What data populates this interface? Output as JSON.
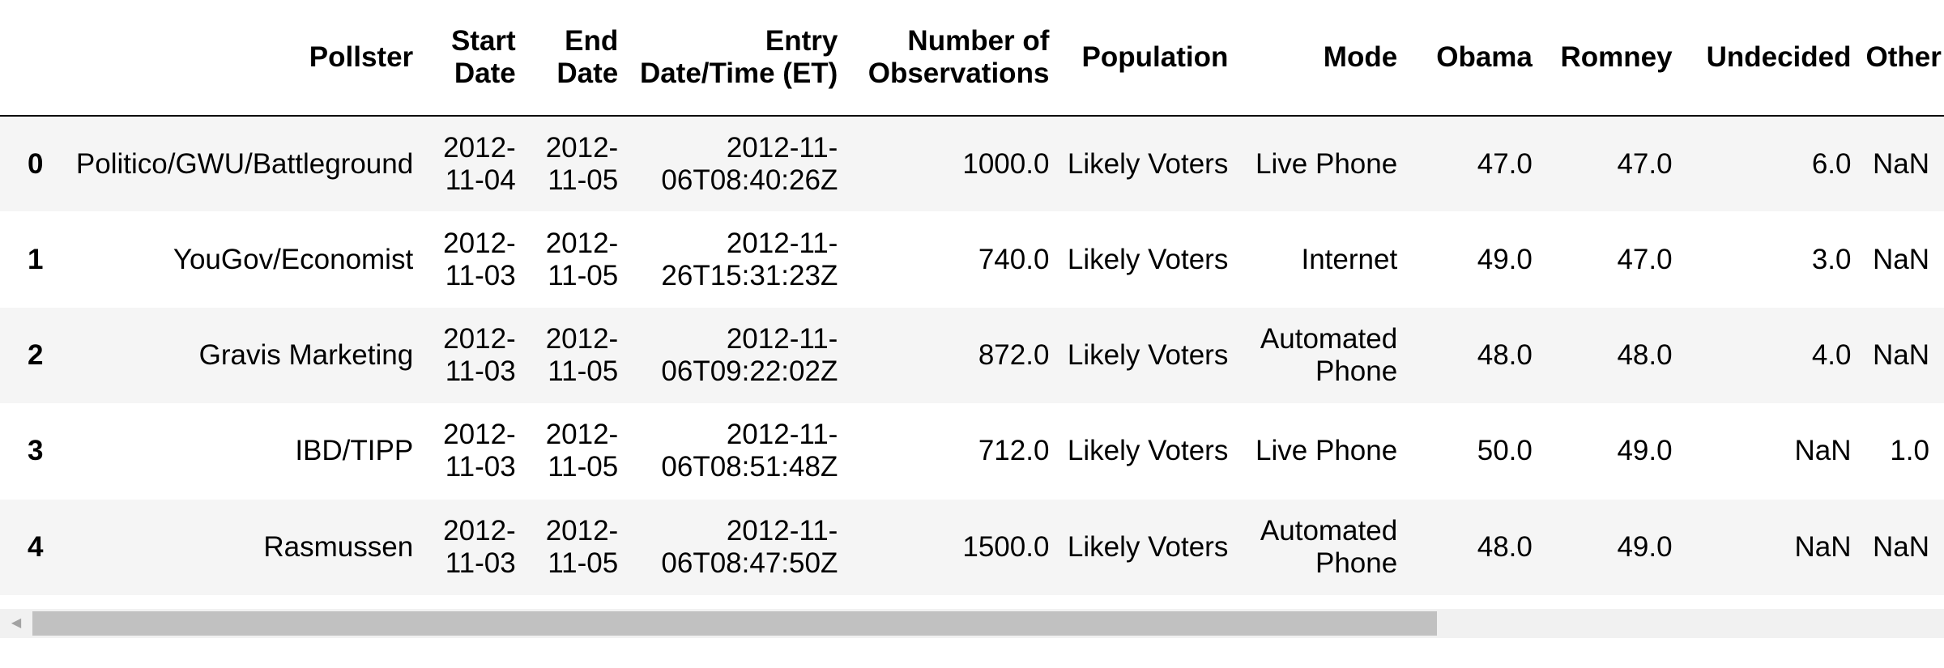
{
  "table": {
    "index_header": "",
    "columns": [
      "Pollster",
      "Start Date",
      "End Date",
      "Entry Date/Time (ET)",
      "Number of Observations",
      "Population",
      "Mode",
      "Obama",
      "Romney",
      "Undecided",
      "Other"
    ],
    "rows": [
      {
        "index": "0",
        "cells": [
          "Politico/GWU/Battleground",
          "2012-11-04",
          "2012-11-05",
          "2012-11-06T08:40:26Z",
          "1000.0",
          "Likely Voters",
          "Live Phone",
          "47.0",
          "47.0",
          "6.0",
          "NaN"
        ]
      },
      {
        "index": "1",
        "cells": [
          "YouGov/Economist",
          "2012-11-03",
          "2012-11-05",
          "2012-11-26T15:31:23Z",
          "740.0",
          "Likely Voters",
          "Internet",
          "49.0",
          "47.0",
          "3.0",
          "NaN"
        ]
      },
      {
        "index": "2",
        "cells": [
          "Gravis Marketing",
          "2012-11-03",
          "2012-11-05",
          "2012-11-06T09:22:02Z",
          "872.0",
          "Likely Voters",
          "Automated Phone",
          "48.0",
          "48.0",
          "4.0",
          "NaN"
        ]
      },
      {
        "index": "3",
        "cells": [
          "IBD/TIPP",
          "2012-11-03",
          "2012-11-05",
          "2012-11-06T08:51:48Z",
          "712.0",
          "Likely Voters",
          "Live Phone",
          "50.0",
          "49.0",
          "NaN",
          "1.0"
        ]
      },
      {
        "index": "4",
        "cells": [
          "Rasmussen",
          "2012-11-03",
          "2012-11-05",
          "2012-11-06T08:47:50Z",
          "1500.0",
          "Likely Voters",
          "Automated Phone",
          "48.0",
          "49.0",
          "NaN",
          "NaN"
        ]
      }
    ]
  },
  "scrollbar": {
    "left_arrow_icon": "triangle-left-icon"
  }
}
